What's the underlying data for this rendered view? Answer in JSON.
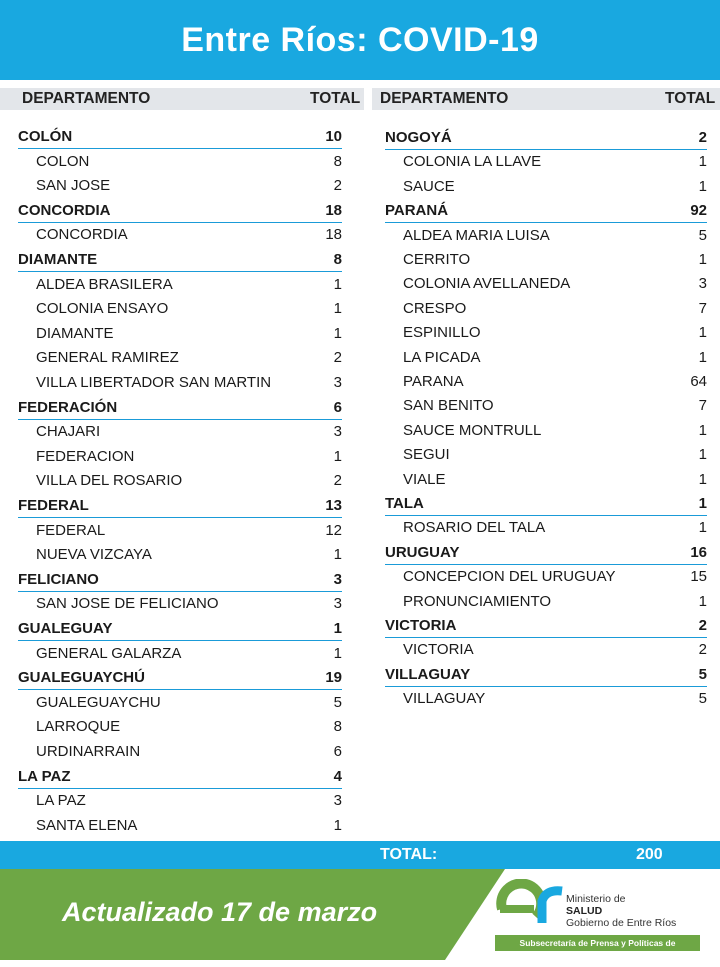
{
  "title": "Entre Ríos: COVID-19",
  "column_headers": {
    "departamento": "DEPARTAMENTO",
    "total": "TOTAL"
  },
  "left_column": [
    {
      "name": "COLÓN",
      "total": "10",
      "kind": "dept"
    },
    {
      "name": "COLON",
      "total": "8",
      "kind": "sub"
    },
    {
      "name": "SAN JOSE",
      "total": "2",
      "kind": "sub"
    },
    {
      "name": "CONCORDIA",
      "total": "18",
      "kind": "dept"
    },
    {
      "name": "CONCORDIA",
      "total": "18",
      "kind": "sub"
    },
    {
      "name": "DIAMANTE",
      "total": "8",
      "kind": "dept"
    },
    {
      "name": "ALDEA BRASILERA",
      "total": "1",
      "kind": "sub"
    },
    {
      "name": "COLONIA ENSAYO",
      "total": "1",
      "kind": "sub"
    },
    {
      "name": "DIAMANTE",
      "total": "1",
      "kind": "sub"
    },
    {
      "name": "GENERAL RAMIREZ",
      "total": "2",
      "kind": "sub"
    },
    {
      "name": "VILLA LIBERTADOR SAN MARTIN",
      "total": "3",
      "kind": "sub"
    },
    {
      "name": "FEDERACIÓN",
      "total": "6",
      "kind": "dept"
    },
    {
      "name": "CHAJARI",
      "total": "3",
      "kind": "sub"
    },
    {
      "name": "FEDERACION",
      "total": "1",
      "kind": "sub"
    },
    {
      "name": "VILLA DEL ROSARIO",
      "total": "2",
      "kind": "sub"
    },
    {
      "name": "FEDERAL",
      "total": "13",
      "kind": "dept"
    },
    {
      "name": "FEDERAL",
      "total": "12",
      "kind": "sub"
    },
    {
      "name": "NUEVA VIZCAYA",
      "total": "1",
      "kind": "sub"
    },
    {
      "name": "FELICIANO",
      "total": "3",
      "kind": "dept"
    },
    {
      "name": "SAN JOSE DE FELICIANO",
      "total": "3",
      "kind": "sub"
    },
    {
      "name": "GUALEGUAY",
      "total": "1",
      "kind": "dept"
    },
    {
      "name": "GENERAL GALARZA",
      "total": "1",
      "kind": "sub"
    },
    {
      "name": "GUALEGUAYCHÚ",
      "total": "19",
      "kind": "dept"
    },
    {
      "name": "GUALEGUAYCHU",
      "total": "5",
      "kind": "sub"
    },
    {
      "name": "LARROQUE",
      "total": "8",
      "kind": "sub"
    },
    {
      "name": "URDINARRAIN",
      "total": "6",
      "kind": "sub"
    },
    {
      "name": "LA PAZ",
      "total": "4",
      "kind": "dept"
    },
    {
      "name": "LA PAZ",
      "total": "3",
      "kind": "sub"
    },
    {
      "name": "SANTA ELENA",
      "total": "1",
      "kind": "sub"
    }
  ],
  "right_column": [
    {
      "name": "NOGOYÁ",
      "total": "2",
      "kind": "dept"
    },
    {
      "name": "COLONIA LA LLAVE",
      "total": "1",
      "kind": "sub"
    },
    {
      "name": "SAUCE",
      "total": "1",
      "kind": "sub"
    },
    {
      "name": "PARANÁ",
      "total": "92",
      "kind": "dept"
    },
    {
      "name": "ALDEA MARIA LUISA",
      "total": "5",
      "kind": "sub"
    },
    {
      "name": "CERRITO",
      "total": "1",
      "kind": "sub"
    },
    {
      "name": "COLONIA AVELLANEDA",
      "total": "3",
      "kind": "sub"
    },
    {
      "name": "CRESPO",
      "total": "7",
      "kind": "sub"
    },
    {
      "name": "ESPINILLO",
      "total": "1",
      "kind": "sub"
    },
    {
      "name": "LA PICADA",
      "total": "1",
      "kind": "sub"
    },
    {
      "name": "PARANA",
      "total": "64",
      "kind": "sub"
    },
    {
      "name": "SAN BENITO",
      "total": "7",
      "kind": "sub"
    },
    {
      "name": "SAUCE MONTRULL",
      "total": "1",
      "kind": "sub"
    },
    {
      "name": "SEGUI",
      "total": "1",
      "kind": "sub"
    },
    {
      "name": "VIALE",
      "total": "1",
      "kind": "sub"
    },
    {
      "name": "TALA",
      "total": "1",
      "kind": "dept"
    },
    {
      "name": "ROSARIO DEL TALA",
      "total": "1",
      "kind": "sub"
    },
    {
      "name": "URUGUAY",
      "total": "16",
      "kind": "dept"
    },
    {
      "name": "CONCEPCION DEL URUGUAY",
      "total": "15",
      "kind": "sub"
    },
    {
      "name": "PRONUNCIAMIENTO",
      "total": "1",
      "kind": "sub"
    },
    {
      "name": "VICTORIA",
      "total": "2",
      "kind": "dept"
    },
    {
      "name": "VICTORIA",
      "total": "2",
      "kind": "sub"
    },
    {
      "name": "VILLAGUAY",
      "total": "5",
      "kind": "dept"
    },
    {
      "name": "VILLAGUAY",
      "total": "5",
      "kind": "sub"
    }
  ],
  "total": {
    "label": "TOTAL:",
    "value": "200"
  },
  "footer": {
    "updated": "Actualizado 17 de marzo",
    "ministry_line1": "Ministerio de",
    "ministry_line2": "SALUD",
    "ministry_line3": "Gobierno de Entre Ríos",
    "subsecretaria": "Subsecretaría de Prensa y Políticas de Comunicación"
  },
  "colors": {
    "accent_blue": "#19a8e0",
    "accent_green": "#6ea745"
  },
  "logo_icon": "er-logo-icon"
}
